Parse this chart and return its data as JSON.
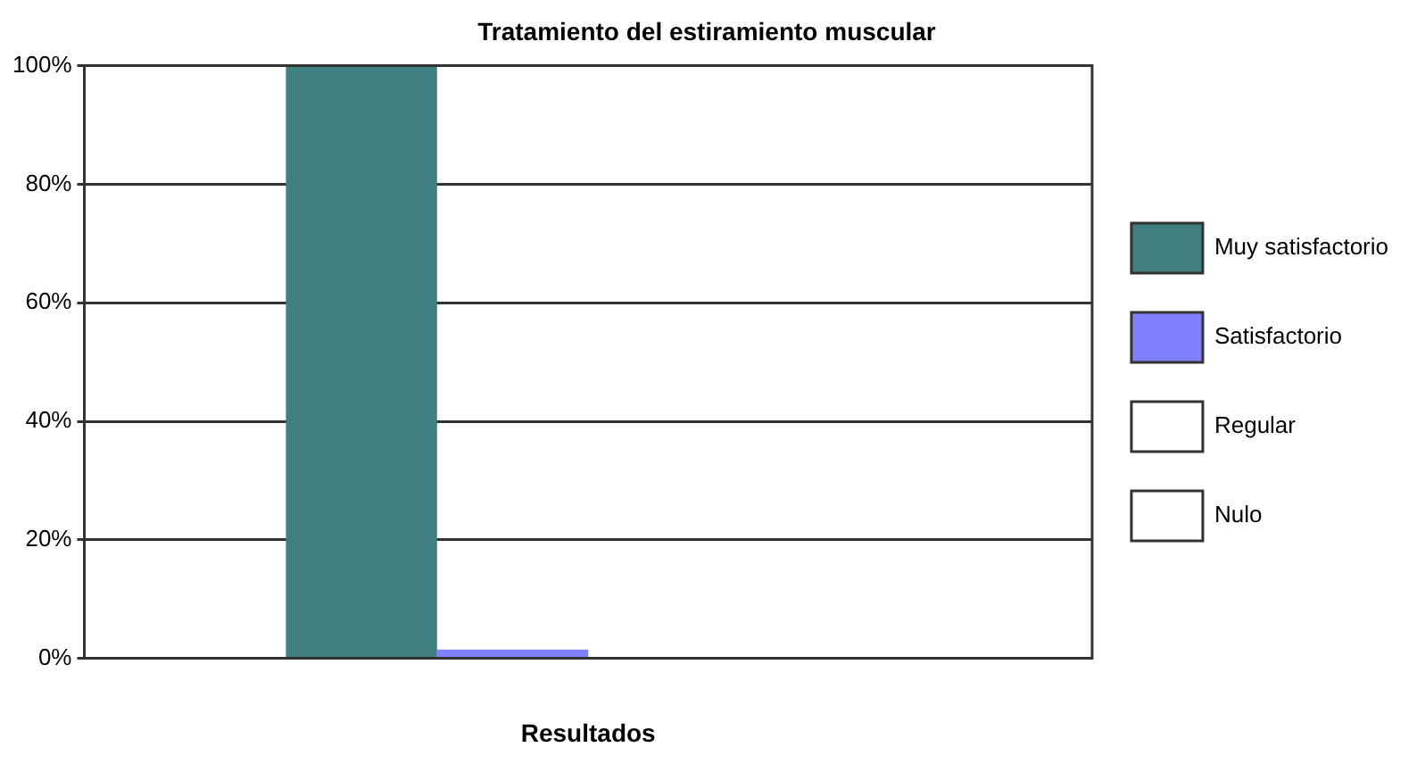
{
  "chart_data": {
    "type": "bar",
    "title": "Tratamiento del estiramiento muscular",
    "xlabel": "Resultados",
    "categories": [
      null
    ],
    "series": [
      {
        "name": "Muy satisfactorio",
        "color": "#408080",
        "values": [
          100
        ]
      },
      {
        "name": "Satisfactorio",
        "color": "#8080ff",
        "values": [
          1.5
        ]
      },
      {
        "name": "Regular",
        "color": "#ffffff",
        "values": [
          0
        ]
      },
      {
        "name": "Nulo",
        "color": "#ffffff",
        "values": [
          0
        ]
      }
    ],
    "ylim": [
      0,
      100
    ],
    "yticks": [
      {
        "value": 0,
        "label": "0%"
      },
      {
        "value": 20,
        "label": "20%"
      },
      {
        "value": 40,
        "label": "40%"
      },
      {
        "value": 60,
        "label": "60%"
      },
      {
        "value": 80,
        "label": "80%"
      },
      {
        "value": 100,
        "label": "100%"
      }
    ],
    "grid": "y",
    "legend": "right"
  }
}
